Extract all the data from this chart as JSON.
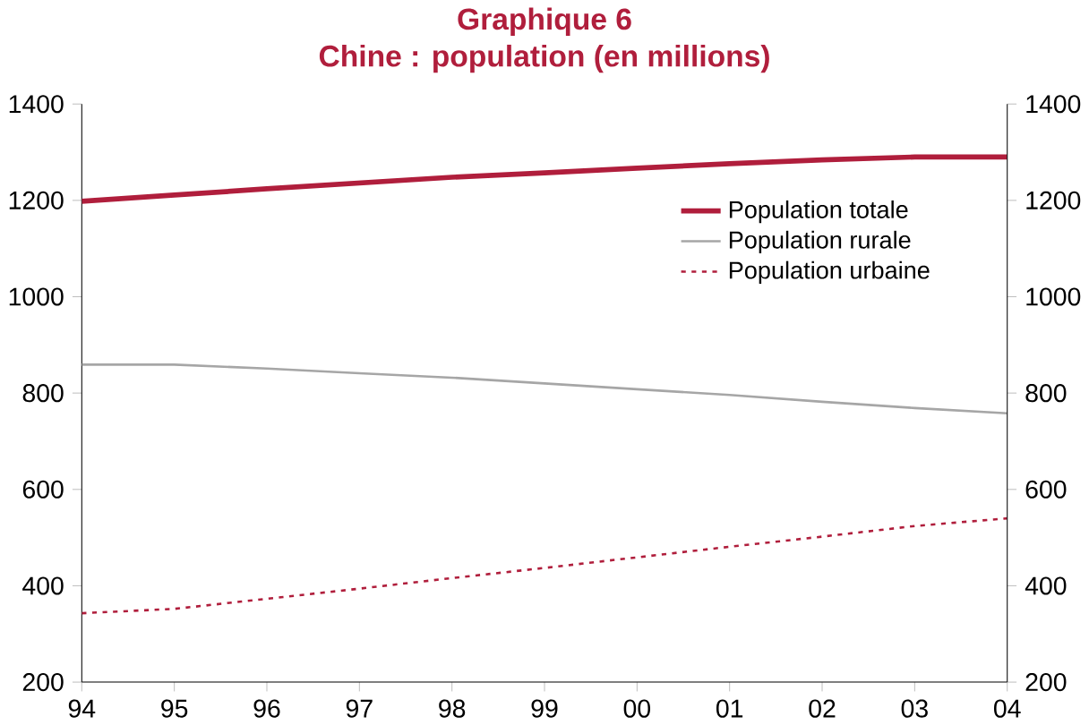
{
  "chart_data": {
    "type": "line",
    "title": "Graphique 6",
    "subtitle": "Chine : population (en millions)",
    "categories": [
      "94",
      "95",
      "96",
      "97",
      "98",
      "99",
      "00",
      "01",
      "02",
      "03",
      "04"
    ],
    "series": [
      {
        "name": "Population totale",
        "color": "#b01e3c",
        "line_style": "solid",
        "values": [
          1198,
          1211,
          1224,
          1236,
          1248,
          1257,
          1267,
          1276,
          1284,
          1290,
          1290
        ]
      },
      {
        "name": "Population rurale",
        "color": "#a6a6a6",
        "line_style": "solid",
        "values": [
          859,
          859,
          851,
          841,
          832,
          820,
          808,
          796,
          782,
          769,
          758
        ]
      },
      {
        "name": "Population urbaine",
        "color": "#b01e3c",
        "line_style": "dashed",
        "values": [
          343,
          352,
          373,
          394,
          416,
          437,
          459,
          481,
          502,
          524,
          540
        ]
      }
    ],
    "ylim": [
      200,
      1400
    ],
    "yticks": [
      200,
      400,
      600,
      800,
      1000,
      1200,
      1400
    ],
    "y2lim": [
      200,
      1400
    ],
    "y2ticks": [
      200,
      400,
      600,
      800,
      1000,
      1200,
      1400
    ],
    "legend": "top right",
    "grid": false,
    "marker": "none"
  }
}
